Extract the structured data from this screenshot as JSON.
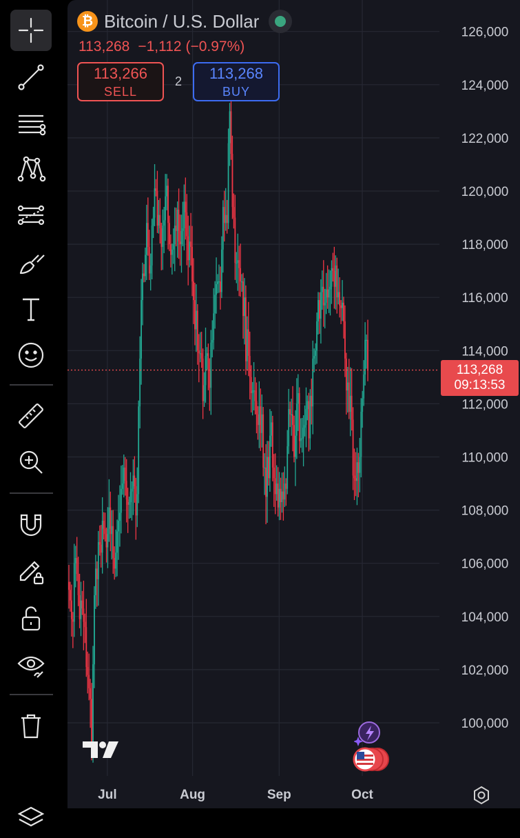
{
  "header": {
    "coin_symbol": "₿",
    "symbol_title": "Bitcoin / U.S. Dollar",
    "last_price": "113,268",
    "change": "−1,112",
    "change_percent": "(−0.97%)",
    "sell_price": "113,266",
    "sell_label": "SELL",
    "spread": "2",
    "buy_price": "113,268",
    "buy_label": "BUY",
    "market_status": "open"
  },
  "price_tag": {
    "price": "113,268",
    "countdown": "09:13:53"
  },
  "toolbar": {
    "tools": [
      "crosshair",
      "trend-line",
      "fib-retracement",
      "pattern",
      "forecast",
      "brush",
      "text",
      "emoji",
      "measure",
      "zoom-in",
      "magnet",
      "lock-drawings",
      "unlock",
      "visibility",
      "trash",
      "layers"
    ],
    "active": "crosshair"
  },
  "colors": {
    "up": "#22ab94",
    "down": "#f23645",
    "background": "#16171f",
    "grid": "#262833",
    "axis_text": "#c9cbd2",
    "price_tag": "#e84a4d"
  },
  "chart_data": {
    "type": "candlestick",
    "title": "Bitcoin / U.S. Dollar",
    "ylim": [
      98000,
      126500
    ],
    "y_ticks": [
      100000,
      102000,
      104000,
      106000,
      108000,
      110000,
      112000,
      114000,
      116000,
      118000,
      120000,
      122000,
      124000,
      126000
    ],
    "y_tick_labels": [
      "100,000",
      "102,000",
      "104,000",
      "106,000",
      "108,000",
      "110,000",
      "112,000",
      "114,000",
      "116,000",
      "118,000",
      "120,000",
      "122,000",
      "124,000",
      "126,000"
    ],
    "x_tick_labels": [
      "Jul",
      "Aug",
      "Sep",
      "Oct"
    ],
    "x_tick_positions": [
      56,
      180,
      306,
      427
    ],
    "x_range": [
      0,
      435
    ],
    "last_price": 113268,
    "grid": true,
    "closes": [
      105000,
      104600,
      103900,
      103800,
      106000,
      106200,
      105600,
      104800,
      103900,
      104600,
      104300,
      103800,
      103600,
      102100,
      101800,
      101300,
      100900,
      99000,
      102200,
      104800,
      105800,
      105400,
      106800,
      106700,
      106400,
      107600,
      107300,
      107100,
      106600,
      107300,
      108100,
      107100,
      107400,
      106200,
      105800,
      106400,
      107200,
      107600,
      107900,
      108800,
      109000,
      109600,
      109100,
      108400,
      108200,
      108300,
      108700,
      108800,
      109300,
      108900,
      107800,
      108600,
      111900,
      113700,
      115900,
      116900,
      116800,
      117600,
      118800,
      117900,
      116900,
      117200,
      118700,
      119000,
      120100,
      120000,
      118700,
      119100,
      118600,
      117900,
      118700,
      118900,
      119800,
      120200,
      118800,
      118000,
      117600,
      117800,
      118000,
      118700,
      118500,
      119300,
      118100,
      118000,
      118500,
      118600,
      119600,
      119200,
      118300,
      117400,
      118100,
      117900,
      116600,
      115900,
      114800,
      115500,
      114000,
      113900,
      113900,
      113700,
      112100,
      112700,
      113800,
      113900,
      113300,
      112600,
      114300,
      114400,
      115400,
      116100,
      116500,
      116600,
      116600,
      116200,
      117800,
      119400,
      118800,
      119100,
      118800,
      121800,
      123000,
      121400,
      119400,
      119000,
      117300,
      117300,
      117400,
      117100,
      116600,
      116600,
      115300,
      116000,
      113600,
      114800,
      113800,
      113000,
      112400,
      112500,
      112500,
      112100,
      111600,
      111200,
      111900,
      110900,
      111600,
      109600,
      109600,
      108500,
      110000,
      109200,
      110800,
      111300,
      109600,
      109200,
      108600,
      109000,
      108100,
      108800,
      108300,
      108700,
      108400,
      109000,
      108800,
      110400,
      111800,
      111600,
      111600,
      111200,
      110000,
      110800,
      112000,
      112400,
      110600,
      110700,
      110700,
      111100,
      111200,
      111800,
      112100,
      110700,
      112300,
      111900,
      113700,
      113800,
      114000,
      115100,
      115900,
      115200,
      116200,
      116400,
      115700,
      115800,
      116300,
      116000,
      116300,
      116400,
      117100,
      117000,
      116400,
      117200,
      116000,
      116200,
      115700,
      115600,
      115800,
      115100,
      113700,
      112500,
      112800,
      111700,
      112300,
      111400,
      109300,
      109200,
      109100,
      109800,
      109400,
      110000,
      111700,
      112200,
      113100,
      114400,
      114400,
      113270
    ]
  }
}
